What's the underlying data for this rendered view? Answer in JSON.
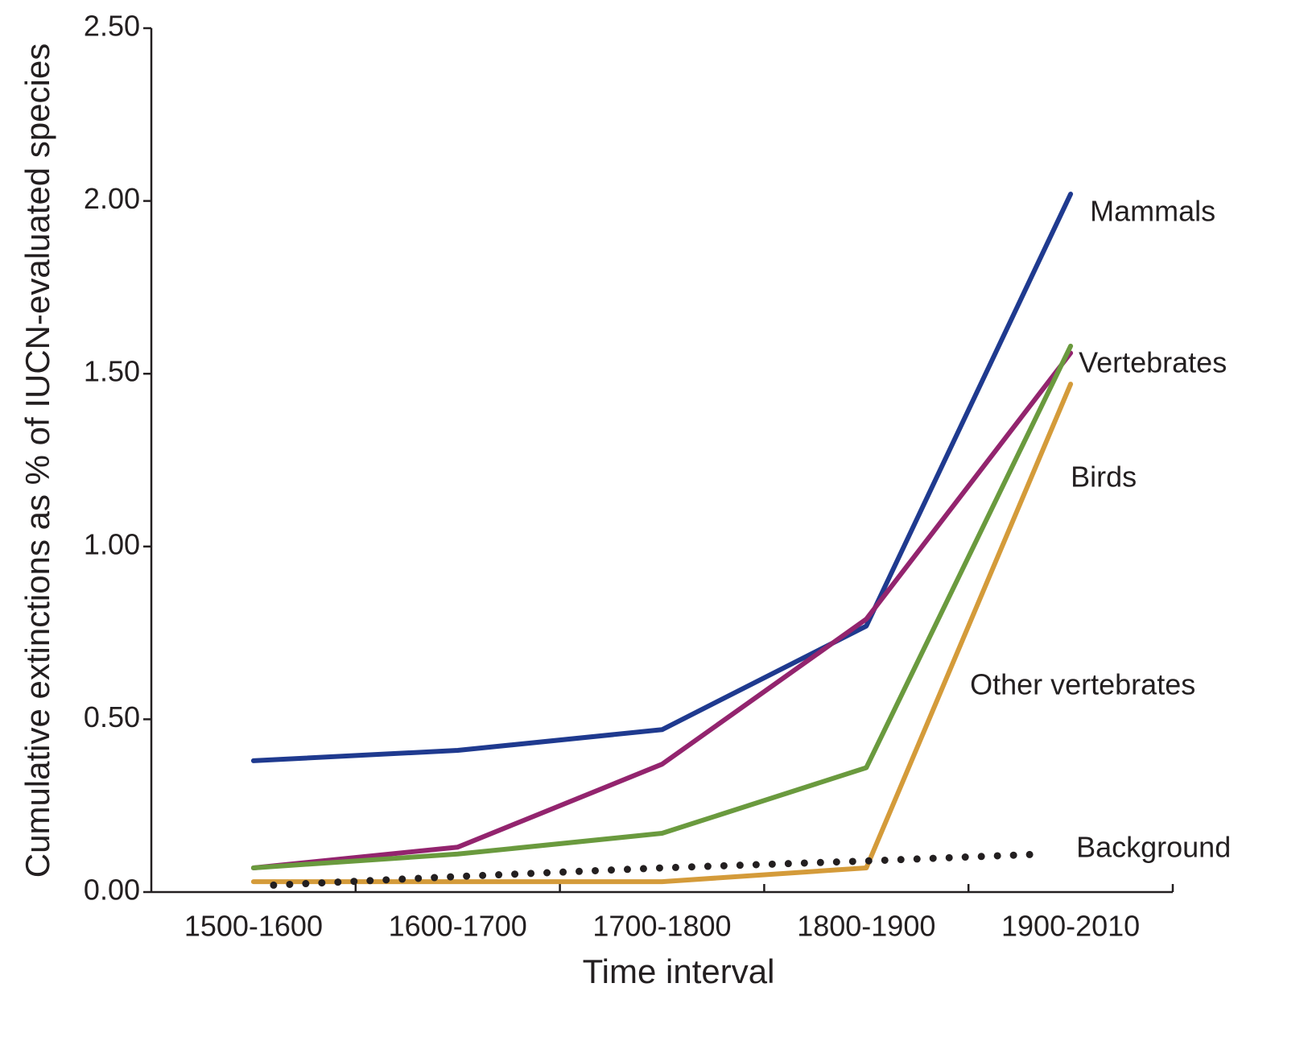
{
  "chart_data": {
    "type": "line",
    "xlabel": "Time interval",
    "ylabel": "Cumulative extinctions as % of IUCN-evaluated species",
    "categories": [
      "1500-1600",
      "1600-1700",
      "1700-1800",
      "1800-1900",
      "1900-2010"
    ],
    "ylim": [
      0,
      2.5
    ],
    "yticks": [
      {
        "value": 0,
        "label": "0.00"
      },
      {
        "value": 0.5,
        "label": "0.50"
      },
      {
        "value": 1,
        "label": "1.00"
      },
      {
        "value": 1.5,
        "label": "1.50"
      },
      {
        "value": 2,
        "label": "2.00"
      },
      {
        "value": 2.5,
        "label": "2.50"
      }
    ],
    "series": [
      {
        "name": "Mammals",
        "color": "#1f3a8f",
        "values": [
          0.38,
          0.41,
          0.47,
          0.77,
          2.02
        ]
      },
      {
        "name": "Vertebrates",
        "color": "#93246e",
        "values": [
          0.07,
          0.13,
          0.37,
          0.79,
          1.56
        ]
      },
      {
        "name": "Birds",
        "color": "#6a9a3e",
        "values": [
          0.07,
          0.11,
          0.17,
          0.36,
          1.58
        ]
      },
      {
        "name": "Other vertebrates",
        "color": "#d49b3a",
        "values": [
          0.03,
          0.03,
          0.03,
          0.07,
          1.47
        ]
      },
      {
        "name": "Background",
        "color": "#231f20",
        "style": "dotted",
        "values": [
          0.02,
          0.045,
          0.07,
          0.09,
          0.11
        ]
      }
    ]
  }
}
